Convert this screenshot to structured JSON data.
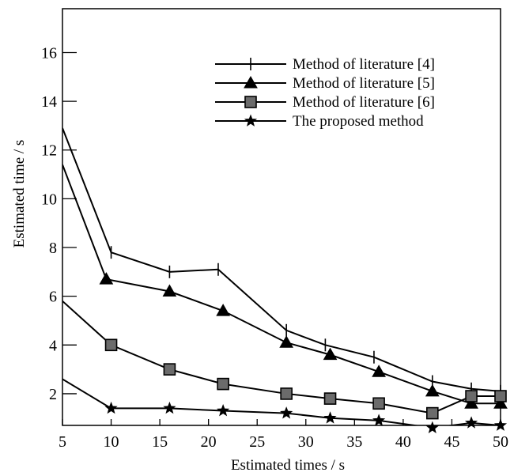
{
  "chart_data": {
    "type": "line",
    "xlabel": "Estimated times / s",
    "ylabel": "Estimated time / s",
    "xlim": [
      5,
      50
    ],
    "ylim": [
      0.7,
      17.8
    ],
    "x_ticks": [
      5,
      10,
      15,
      20,
      25,
      30,
      35,
      40,
      45,
      50
    ],
    "y_ticks": [
      2,
      4,
      6,
      8,
      10,
      12,
      14,
      16
    ],
    "grid": false,
    "legend_position": "top-right",
    "series": [
      {
        "name": "Method of literature [4]",
        "marker": "plus",
        "x": [
          5,
          10,
          16,
          21,
          28,
          32,
          37,
          43,
          47,
          50
        ],
        "y": [
          12.9,
          7.8,
          7.0,
          7.1,
          4.6,
          4.0,
          3.5,
          2.5,
          2.2,
          2.1
        ]
      },
      {
        "name": "Method of literature [5]",
        "marker": "triangle",
        "x": [
          5,
          9.5,
          16,
          21.5,
          28,
          32.5,
          37.5,
          43,
          47,
          50
        ],
        "y": [
          11.4,
          6.7,
          6.2,
          5.4,
          4.1,
          3.6,
          2.9,
          2.1,
          1.6,
          1.6
        ]
      },
      {
        "name": "Method of literature [6]",
        "marker": "square",
        "x": [
          5,
          10,
          16,
          21.5,
          28,
          32.5,
          37.5,
          43,
          47,
          50
        ],
        "y": [
          5.8,
          4.0,
          3.0,
          2.4,
          2.0,
          1.8,
          1.6,
          1.2,
          1.9,
          1.9
        ]
      },
      {
        "name": "The proposed method",
        "marker": "star",
        "x": [
          5,
          10,
          16,
          21.5,
          28,
          32.5,
          37.5,
          43,
          47,
          50
        ],
        "y": [
          2.6,
          1.4,
          1.4,
          1.3,
          1.2,
          1.0,
          0.9,
          0.6,
          0.8,
          0.7
        ]
      }
    ]
  }
}
